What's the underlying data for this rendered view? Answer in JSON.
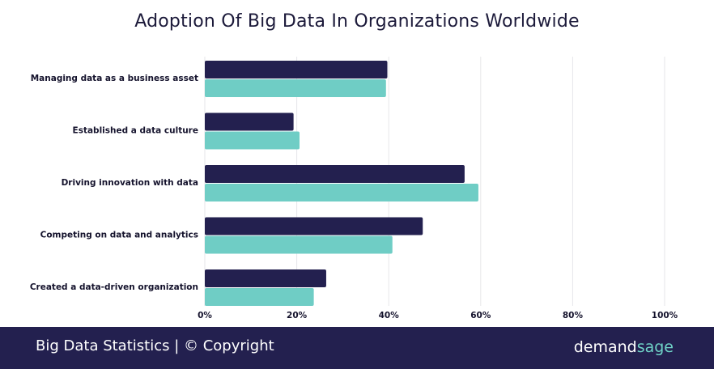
{
  "chart_data": {
    "type": "bar",
    "orientation": "horizontal",
    "title": "Adoption Of Big Data In Organizations Worldwide",
    "categories": [
      "Managing data as a business asset",
      "Established a data culture",
      "Driving innovation with data",
      "Competing on data and analytics",
      "Created a data-driven organization"
    ],
    "series": [
      {
        "color": "#23204f",
        "values": [
          39.7,
          19.3,
          56.5,
          47.4,
          26.4
        ]
      },
      {
        "color": "#6fcdc5",
        "values": [
          39.4,
          20.6,
          59.5,
          40.8,
          23.7
        ]
      }
    ],
    "xlim": [
      0,
      100
    ],
    "xticks": [
      "0%",
      "20%",
      "40%",
      "60%",
      "80%",
      "100%"
    ],
    "grid": true
  },
  "footer": {
    "text": "Big Data Statistics | © Copyright",
    "brand_main": "demand",
    "brand_accent": "sage",
    "brand_accent_color": "#6fd3c7"
  }
}
